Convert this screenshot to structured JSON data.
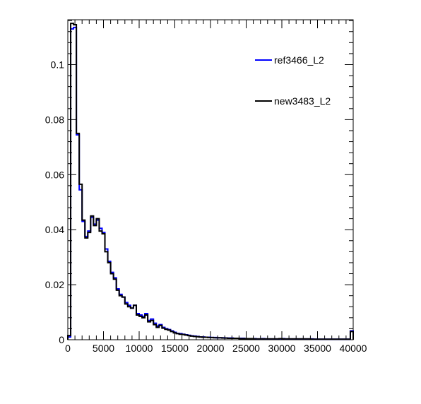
{
  "chart_data": {
    "type": "histogram",
    "title": "",
    "xlabel": "",
    "ylabel": "",
    "xlim": [
      0,
      40000
    ],
    "ylim": [
      0,
      0.1163
    ],
    "bin_width": 400,
    "x_ticks": [
      0,
      5000,
      10000,
      15000,
      20000,
      25000,
      30000,
      35000,
      40000
    ],
    "x_tick_labels": [
      "0",
      "5000",
      "10000",
      "15000",
      "20000",
      "25000",
      "30000",
      "35000",
      "40000"
    ],
    "y_ticks": [
      0,
      0.02,
      0.04,
      0.06,
      0.08,
      0.1
    ],
    "y_tick_labels": [
      "0",
      "0.02",
      "0.04",
      "0.06",
      "0.08",
      "0.1"
    ],
    "grid": false,
    "legend_position": "top-right",
    "series": [
      {
        "name": "ref3466_L2",
        "color": "#0000ff",
        "values": [
          0.001,
          0.113,
          0.1135,
          0.0745,
          0.0545,
          0.043,
          0.0375,
          0.0395,
          0.0445,
          0.042,
          0.0435,
          0.0405,
          0.039,
          0.033,
          0.0285,
          0.0245,
          0.0225,
          0.0185,
          0.0165,
          0.0155,
          0.0135,
          0.0125,
          0.0115,
          0.0125,
          0.0095,
          0.009,
          0.0085,
          0.0095,
          0.007,
          0.0075,
          0.006,
          0.005,
          0.0055,
          0.0045,
          0.004,
          0.0037,
          0.0032,
          0.0027,
          0.0023,
          0.0022,
          0.002,
          0.0018,
          0.0016,
          0.0014,
          0.0013,
          0.0012,
          0.001,
          0.001,
          0.0009,
          0.0009,
          0.0008,
          0.0008,
          0.0007,
          0.0007,
          0.0007,
          0.0006,
          0.0006,
          0.0006,
          0.0005,
          0.0005,
          0.0005,
          0.0005,
          0.0004,
          0.0004,
          0.0004,
          0.0004,
          0.0003,
          0.0003,
          0.0004,
          0.0003,
          0.0003,
          0.0003,
          0.0003,
          0.0003,
          0.0003,
          0.0004,
          0.0003,
          0.0003,
          0.0003,
          0.0003,
          0.0003,
          0.0003,
          0.0003,
          0.0003,
          0.0003,
          0.0003,
          0.0002,
          0.0002,
          0.0002,
          0.0002,
          0.0002,
          0.0002,
          0.0002,
          0.0002,
          0.0002,
          0.0002,
          0.0002,
          0.0002,
          0.0002,
          0.0032
        ]
      },
      {
        "name": "new3483_L2",
        "color": "#000000",
        "values": [
          0.0015,
          0.115,
          0.1145,
          0.075,
          0.0565,
          0.0435,
          0.037,
          0.039,
          0.045,
          0.0415,
          0.044,
          0.0395,
          0.0385,
          0.032,
          0.028,
          0.024,
          0.022,
          0.018,
          0.016,
          0.0155,
          0.013,
          0.012,
          0.0115,
          0.0125,
          0.009,
          0.0085,
          0.008,
          0.009,
          0.0065,
          0.007,
          0.0055,
          0.0045,
          0.0052,
          0.0042,
          0.0038,
          0.0035,
          0.003,
          0.0025,
          0.0022,
          0.002,
          0.0019,
          0.0017,
          0.0015,
          0.0013,
          0.0012,
          0.0011,
          0.001,
          0.0009,
          0.0009,
          0.0008,
          0.0008,
          0.0007,
          0.0007,
          0.0007,
          0.0006,
          0.0006,
          0.0005,
          0.0005,
          0.0005,
          0.0005,
          0.0004,
          0.0004,
          0.0004,
          0.0004,
          0.0004,
          0.0003,
          0.0003,
          0.0003,
          0.0003,
          0.0003,
          0.0003,
          0.0003,
          0.0003,
          0.0003,
          0.0004,
          0.0003,
          0.0003,
          0.0003,
          0.0003,
          0.0003,
          0.0003,
          0.0003,
          0.0003,
          0.0003,
          0.0003,
          0.0002,
          0.0002,
          0.0002,
          0.0002,
          0.0002,
          0.0002,
          0.0002,
          0.0002,
          0.0002,
          0.0002,
          0.0002,
          0.0002,
          0.0002,
          0.0002,
          0.003
        ]
      }
    ]
  }
}
